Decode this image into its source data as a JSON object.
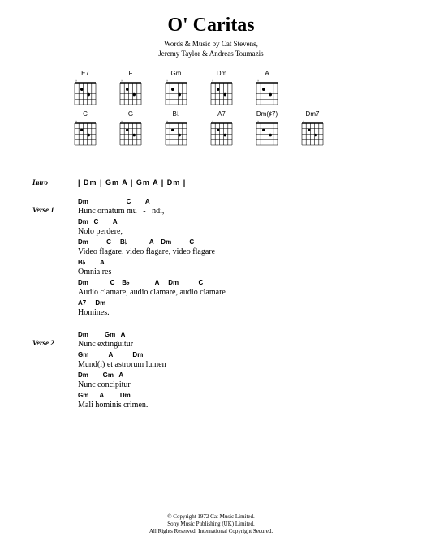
{
  "title": "O' Caritas",
  "credits_line1": "Words & Music by Cat Stevens,",
  "credits_line2": "Jeremy Taylor & Andreas Toumazis",
  "chord_diagrams_row1": [
    "E7",
    "F",
    "Gm",
    "Dm",
    "A"
  ],
  "chord_diagrams_row2": [
    "C",
    "G",
    "B♭",
    "A7",
    "Dm(♯7)",
    "Dm7"
  ],
  "sections": {
    "intro": {
      "label": "Intro",
      "sequence": "|  Dm   |  Gm  A  |  Gm  A  |  Dm   |"
    },
    "verse1": {
      "label": "Verse 1",
      "lines": [
        {
          "chords": "Dm                     C        A",
          "lyric": "Hunc ornatum mu   -   ndi,"
        },
        {
          "chords": "Dm   C        A",
          "lyric": "Nolo perdere,"
        },
        {
          "chords": "Dm          C     B♭            A    Dm          C",
          "lyric": "Video flagare, video flagare, video flagare"
        },
        {
          "chords": "B♭        A",
          "lyric": "Omnia res"
        },
        {
          "chords": "Dm            C    B♭              A     Dm           C",
          "lyric": "Audio clamare, audio clamare, audio clamare"
        },
        {
          "chords": "A7     Dm",
          "lyric": "Homines."
        }
      ]
    },
    "verse2": {
      "label": "Verse 2",
      "lines": [
        {
          "chords": "Dm         Gm   A",
          "lyric": "Nunc extinguitur"
        },
        {
          "chords": "Gm           A           Dm",
          "lyric": "Mund(i) et astrorum lumen"
        },
        {
          "chords": "Dm        Gm   A",
          "lyric": "Nunc concipitur"
        },
        {
          "chords": "Gm      A         Dm",
          "lyric": "Mali hominis crimen."
        }
      ]
    }
  },
  "copyright": {
    "line1": "© Copyright 1972 Cat Music Limited.",
    "line2": "Sony Music Publishing (UK) Limited.",
    "line3": "All Rights Reserved. International Copyright Secured."
  },
  "diagram_style": {
    "width": 28,
    "height": 32,
    "stroke": "#000000",
    "string_count": 6,
    "fret_count": 4
  }
}
